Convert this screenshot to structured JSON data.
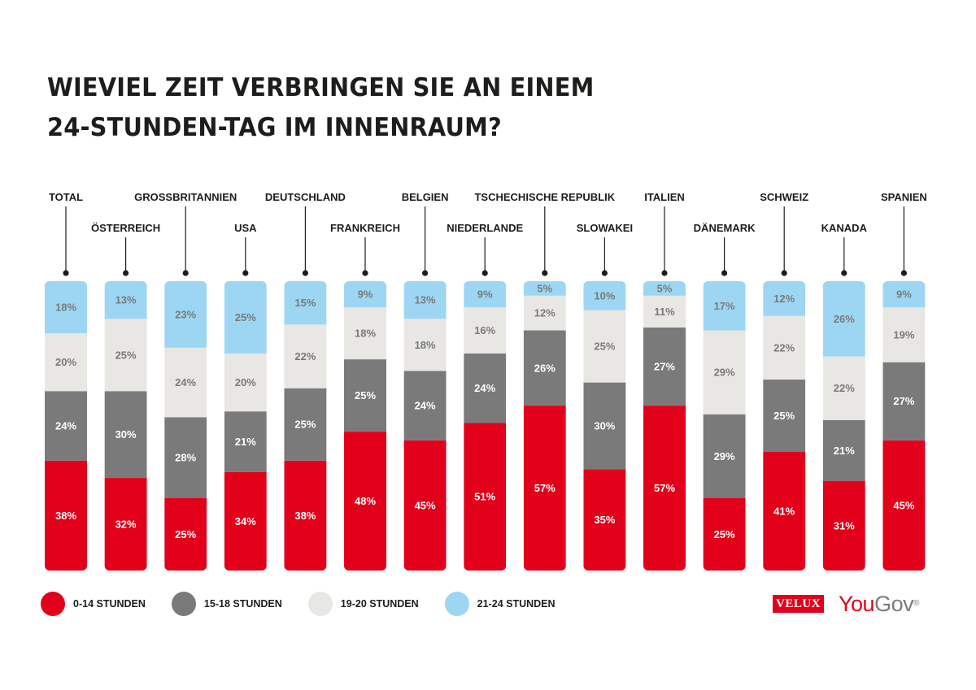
{
  "title_lines": [
    "Wieviel Zeit verbringen Sie an einem",
    "24-Stunden-Tag im Innenraum?"
  ],
  "chart_data": {
    "type": "bar",
    "stacked": true,
    "normalized": true,
    "title": "Wieviel Zeit verbringen Sie an einem 24-Stunden-Tag im Innenraum?",
    "categories": [
      "TOTAL",
      "ÖSTERREICH",
      "GROSSBRITANNIEN",
      "USA",
      "DEUTSCHLAND",
      "FRANKREICH",
      "BELGIEN",
      "NIEDERLANDE",
      "TSCHECHISCHE REPUBLIK",
      "SLOWAKEI",
      "ITALIEN",
      "DÄNEMARK",
      "SCHWEIZ",
      "KANADA",
      "SPANIEN"
    ],
    "series": [
      {
        "name": "0-14 STUNDEN",
        "color": "#e2001a",
        "label_color": "#ffffff",
        "values": [
          38,
          32,
          25,
          34,
          38,
          48,
          45,
          51,
          57,
          35,
          57,
          25,
          41,
          31,
          45
        ]
      },
      {
        "name": "15-18 STUNDEN",
        "color": "#7a7a7a",
        "label_color": "#ffffff",
        "values": [
          24,
          30,
          28,
          21,
          25,
          25,
          24,
          24,
          26,
          30,
          27,
          29,
          25,
          21,
          27
        ]
      },
      {
        "name": "19-20 STUNDEN",
        "color": "#e8e7e3",
        "label_color": "#7a7a7a",
        "values": [
          20,
          25,
          24,
          20,
          22,
          18,
          18,
          16,
          12,
          25,
          11,
          29,
          22,
          22,
          19
        ]
      },
      {
        "name": "21-24 STUNDEN",
        "color": "#9dd6f3",
        "label_color": "#7a7a7a",
        "values": [
          18,
          13,
          23,
          25,
          15,
          9,
          13,
          9,
          5,
          10,
          5,
          17,
          12,
          26,
          9
        ]
      }
    ],
    "value_suffix": "%",
    "ylim": [
      0,
      100
    ],
    "legend_position": "bottom-left"
  },
  "logos": {
    "velux": "VELUX",
    "yougov_you": "You",
    "yougov_gov": "Gov",
    "yougov_reg": "®"
  }
}
